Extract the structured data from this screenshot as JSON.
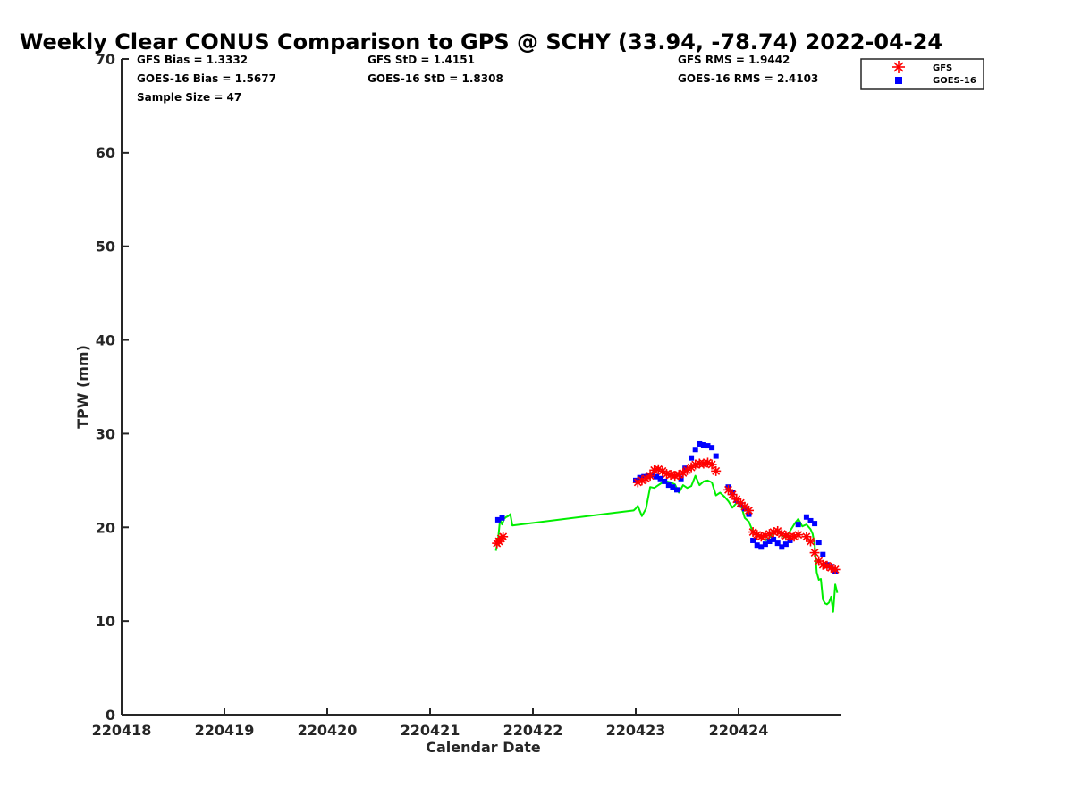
{
  "chart_data": {
    "type": "scatter",
    "title": "Weekly Clear CONUS Comparison to GPS @ SCHY (33.94, -78.74) 2022-04-24",
    "xlabel": "Calendar Date",
    "ylabel": "TPW (mm)",
    "xlim": [
      220418,
      220425
    ],
    "ylim": [
      0,
      70
    ],
    "x_ticks": [
      "220418",
      "220419",
      "220420",
      "220421",
      "220422",
      "220423",
      "220424"
    ],
    "y_ticks": [
      "0",
      "10",
      "20",
      "30",
      "40",
      "50",
      "60",
      "70"
    ],
    "grid": false,
    "legend_position": "top-right",
    "stats": {
      "gfs_bias": "GFS Bias = 1.3332",
      "goes_bias": "GOES-16 Bias = 1.5677",
      "sample_size": "Sample Size = 47",
      "gfs_std": "GFS StD = 1.4151",
      "goes_std": "GOES-16 StD = 1.8308",
      "gfs_rms": "GFS RMS = 1.9442",
      "goes_rms": "GOES-16 RMS = 2.4103"
    },
    "colors": {
      "gfs": "#ff0000",
      "goes": "#0000ff",
      "gps": "#00ee00",
      "axis": "#262626"
    },
    "series": [
      {
        "name": "GFS",
        "marker": "asterisk",
        "x": [
          220421.65,
          220421.67,
          220421.69,
          220421.71,
          220423.02,
          220423.06,
          220423.1,
          220423.14,
          220423.18,
          220423.22,
          220423.26,
          220423.3,
          220423.34,
          220423.38,
          220423.42,
          220423.46,
          220423.5,
          220423.54,
          220423.58,
          220423.62,
          220423.66,
          220423.7,
          220423.74,
          220423.78,
          220423.9,
          220423.94,
          220423.98,
          220424.02,
          220424.06,
          220424.1,
          220424.14,
          220424.18,
          220424.22,
          220424.26,
          220424.3,
          220424.34,
          220424.38,
          220424.42,
          220424.46,
          220424.5,
          220424.54,
          220424.58,
          220424.66,
          220424.7,
          220424.74,
          220424.78,
          220424.82,
          220424.86,
          220424.9,
          220424.94
        ],
        "y": [
          18.3,
          18.5,
          18.8,
          19.0,
          24.8,
          25.0,
          25.2,
          25.5,
          26.1,
          26.2,
          26.0,
          25.7,
          25.6,
          25.5,
          25.6,
          25.8,
          26.1,
          26.4,
          26.7,
          26.8,
          26.8,
          26.9,
          26.7,
          26.0,
          24.0,
          23.5,
          23.0,
          22.6,
          22.2,
          21.8,
          19.5,
          19.2,
          19.0,
          19.1,
          19.3,
          19.5,
          19.6,
          19.3,
          19.1,
          19.0,
          19.0,
          19.2,
          19.0,
          18.5,
          17.3,
          16.4,
          16.0,
          15.9,
          15.7,
          15.5
        ]
      },
      {
        "name": "GOES-16",
        "marker": "square",
        "x": [
          220421.66,
          220421.7,
          220423.0,
          220423.04,
          220423.08,
          220423.12,
          220423.16,
          220423.2,
          220423.24,
          220423.28,
          220423.32,
          220423.36,
          220423.4,
          220423.44,
          220423.48,
          220423.54,
          220423.58,
          220423.62,
          220423.66,
          220423.7,
          220423.74,
          220423.78,
          220423.9,
          220423.94,
          220423.98,
          220424.02,
          220424.06,
          220424.1,
          220424.14,
          220424.18,
          220424.22,
          220424.26,
          220424.3,
          220424.34,
          220424.38,
          220424.42,
          220424.46,
          220424.5,
          220424.58,
          220424.66,
          220424.7,
          220424.74,
          220424.78,
          220424.82,
          220424.86,
          220424.9,
          220424.94
        ],
        "y": [
          20.8,
          21.0,
          25.0,
          25.3,
          25.4,
          25.5,
          25.6,
          25.4,
          25.2,
          24.9,
          24.5,
          24.3,
          24.0,
          25.2,
          26.3,
          27.4,
          28.3,
          28.9,
          28.8,
          28.7,
          28.5,
          27.6,
          24.3,
          23.7,
          22.9,
          22.4,
          22.0,
          21.4,
          18.6,
          18.1,
          17.9,
          18.2,
          18.5,
          18.7,
          18.3,
          17.9,
          18.2,
          18.6,
          20.3,
          21.1,
          20.7,
          20.4,
          18.4,
          17.1,
          16.0,
          15.8,
          15.3
        ]
      },
      {
        "name": "GPS",
        "marker": "line",
        "x": [
          220421.64,
          220421.66,
          220421.68,
          220421.7,
          220421.72,
          220421.74,
          220421.76,
          220421.78,
          220421.8,
          220422.98,
          220423.0,
          220423.02,
          220423.06,
          220423.1,
          220423.14,
          220423.18,
          220423.22,
          220423.26,
          220423.3,
          220423.34,
          220423.38,
          220423.42,
          220423.46,
          220423.5,
          220423.54,
          220423.58,
          220423.62,
          220423.66,
          220423.7,
          220423.74,
          220423.78,
          220423.82,
          220423.86,
          220423.9,
          220423.94,
          220423.98,
          220424.02,
          220424.06,
          220424.1,
          220424.14,
          220424.18,
          220424.22,
          220424.26,
          220424.3,
          220424.34,
          220424.38,
          220424.42,
          220424.46,
          220424.5,
          220424.54,
          220424.58,
          220424.62,
          220424.66,
          220424.7,
          220424.72,
          220424.74,
          220424.76,
          220424.78,
          220424.8,
          220424.82,
          220424.84,
          220424.86,
          220424.88,
          220424.9,
          220424.92,
          220424.94,
          220424.96
        ],
        "y": [
          17.5,
          18.6,
          20.8,
          20.3,
          20.9,
          21.1,
          21.2,
          21.4,
          20.2,
          21.8,
          22.0,
          22.3,
          21.2,
          22.0,
          24.3,
          24.2,
          24.5,
          24.8,
          24.9,
          24.8,
          24.6,
          23.7,
          24.5,
          24.2,
          24.4,
          25.5,
          24.5,
          24.9,
          25.0,
          24.8,
          23.4,
          23.7,
          23.3,
          22.8,
          22.1,
          22.6,
          22.5,
          21.0,
          20.6,
          19.5,
          19.2,
          18.9,
          18.6,
          18.9,
          19.4,
          19.6,
          19.1,
          18.9,
          19.6,
          20.3,
          20.9,
          20.1,
          20.3,
          19.8,
          19.3,
          18.1,
          15.2,
          14.4,
          14.5,
          12.3,
          11.9,
          11.8,
          12.0,
          12.6,
          11.0,
          13.9,
          13.0
        ]
      }
    ]
  }
}
